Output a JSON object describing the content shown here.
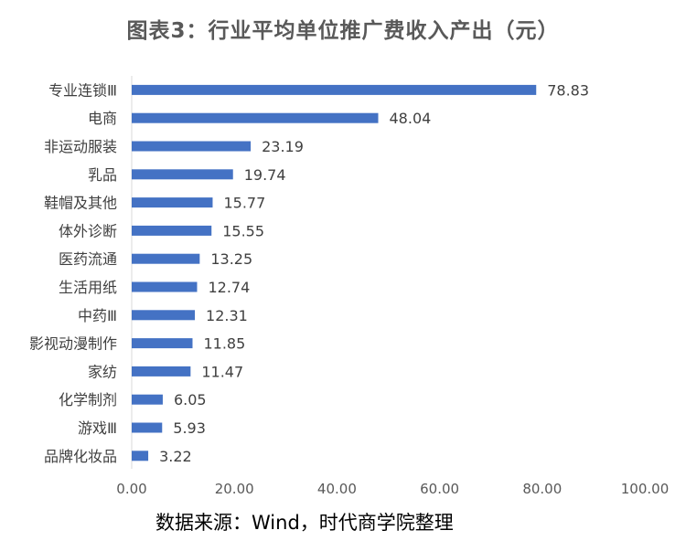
{
  "chart_data": {
    "type": "bar",
    "orientation": "horizontal",
    "title": "图表3：行业平均单位推广费收入产出（元）",
    "categories": [
      "专业连锁Ⅲ",
      "电商",
      "非运动服装",
      "乳品",
      "鞋帽及其他",
      "体外诊断",
      "医药流通",
      "生活用纸",
      "中药Ⅲ",
      "影视动漫制作",
      "家纺",
      "化学制剂",
      "游戏Ⅲ",
      "品牌化妆品"
    ],
    "values": [
      78.83,
      48.04,
      23.19,
      19.74,
      15.77,
      15.55,
      13.25,
      12.74,
      12.31,
      11.85,
      11.47,
      6.05,
      5.93,
      3.22
    ],
    "value_labels": [
      "78.83",
      "48.04",
      "23.19",
      "19.74",
      "15.77",
      "15.55",
      "13.25",
      "12.74",
      "12.31",
      "11.85",
      "11.47",
      "6.05",
      "5.93",
      "3.22"
    ],
    "xlim": [
      0,
      100
    ],
    "x_ticks": [
      0,
      20,
      40,
      60,
      80,
      100
    ],
    "x_tick_labels": [
      "0.00",
      "20.00",
      "40.00",
      "60.00",
      "80.00",
      "100.00"
    ],
    "xlabel": "",
    "ylabel": "",
    "grid": false,
    "legend": "none",
    "bar_color": "#4472C4"
  },
  "source": "数据来源：Wind，时代商学院整理"
}
